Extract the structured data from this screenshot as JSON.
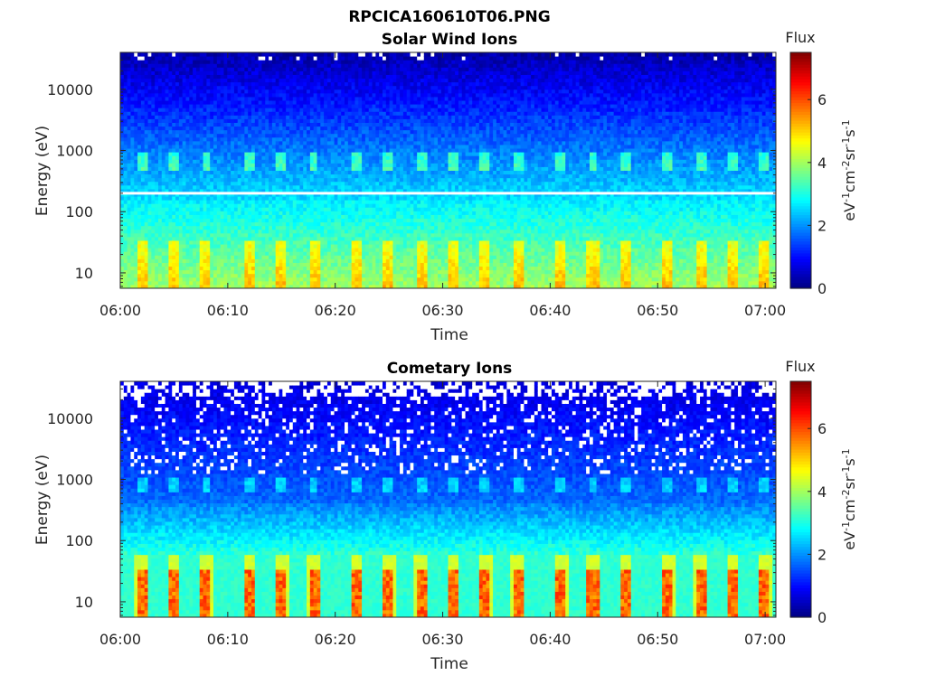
{
  "figure": {
    "title": "RPCICA160610T06.PNG"
  },
  "chart_data": [
    {
      "type": "heatmap",
      "title": "Solar Wind Ions",
      "xlabel": "Time",
      "ylabel": "Energy (eV)",
      "x_ticks": [
        "06:00",
        "06:10",
        "06:20",
        "06:30",
        "06:40",
        "06:50",
        "07:00"
      ],
      "y_ticks": [
        "10",
        "100",
        "1000",
        "10000"
      ],
      "xlim": [
        "06:00",
        "07:01"
      ],
      "ylim": [
        5.6,
        40000
      ],
      "yscale": "log",
      "colorbar": {
        "label": "Flux",
        "units": "eV-1cm-2sr-1s-1",
        "ticks": [
          "0",
          "2",
          "4",
          "6"
        ],
        "range": [
          0,
          7.5
        ],
        "colormap": "jet"
      },
      "features": [
        {
          "kind": "horizontal-line",
          "energy_eV": 200,
          "color": "#ffffff"
        }
      ],
      "bursts_time": [
        "06:02",
        "06:05",
        "06:08",
        "06:12",
        "06:15",
        "06:18",
        "06:22",
        "06:25",
        "06:28",
        "06:31",
        "06:34",
        "06:37",
        "06:41",
        "06:44",
        "06:47",
        "06:51",
        "06:54",
        "06:57",
        "07:00"
      ]
    },
    {
      "type": "heatmap",
      "title": "Cometary Ions",
      "xlabel": "Time",
      "ylabel": "Energy (eV)",
      "x_ticks": [
        "06:00",
        "06:10",
        "06:20",
        "06:30",
        "06:40",
        "06:50",
        "07:00"
      ],
      "y_ticks": [
        "10",
        "100",
        "1000",
        "10000"
      ],
      "xlim": [
        "06:00",
        "07:01"
      ],
      "ylim": [
        5.6,
        40000
      ],
      "yscale": "log",
      "colorbar": {
        "label": "Flux",
        "units": "eV-1cm-2sr-1s-1",
        "ticks": [
          "0",
          "2",
          "4",
          "6"
        ],
        "range": [
          0,
          7.5
        ],
        "colormap": "jet"
      },
      "bursts_time": [
        "06:02",
        "06:05",
        "06:08",
        "06:12",
        "06:15",
        "06:18",
        "06:22",
        "06:25",
        "06:28",
        "06:31",
        "06:34",
        "06:37",
        "06:41",
        "06:44",
        "06:47",
        "06:51",
        "06:54",
        "06:57",
        "07:00"
      ]
    }
  ]
}
